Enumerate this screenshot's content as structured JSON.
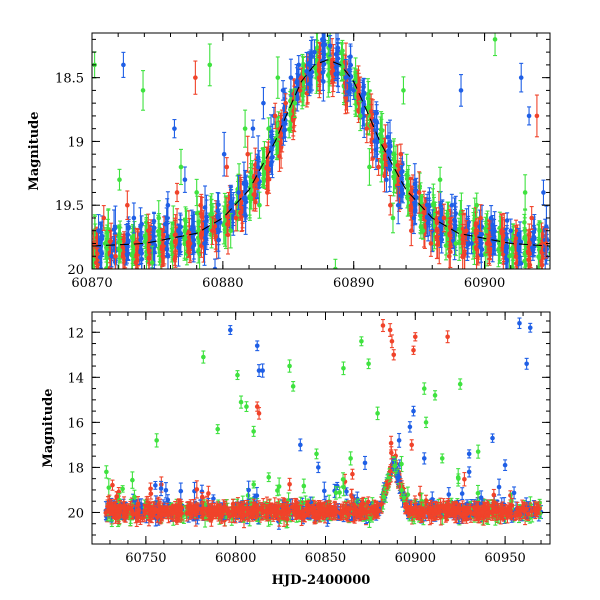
{
  "chart_data": [
    {
      "type": "scatter",
      "panel": "top",
      "ylabel": "Magnitude",
      "xlabel": "",
      "xlim": [
        60870,
        60905
      ],
      "ylim": [
        20.0,
        18.15
      ],
      "y_inverted": true,
      "xticks": [
        60870,
        60880,
        60890,
        60900
      ],
      "yticks": [
        18.5,
        19,
        19.5,
        20
      ],
      "xtick_labels": [
        "60870",
        "60880",
        "60890",
        "60900"
      ],
      "ytick_labels": [
        "18.5",
        "19",
        "19.5",
        "20"
      ],
      "error_bars": true,
      "series": [
        {
          "name": "blue",
          "color": "#1f5fe6"
        },
        {
          "name": "green",
          "color": "#3fe23f"
        },
        {
          "name": "red",
          "color": "#f0432a"
        }
      ],
      "model_curve": {
        "style": "dashed",
        "color": "#000000",
        "x": [
          60870,
          60874,
          60878,
          60880,
          60882,
          60884,
          60885,
          60886,
          60887,
          60888,
          60889,
          60890,
          60891,
          60892,
          60894,
          60896,
          60898,
          60902,
          60905
        ],
        "y": [
          19.82,
          19.8,
          19.72,
          19.6,
          19.38,
          19.0,
          18.76,
          18.53,
          18.4,
          18.36,
          18.4,
          18.53,
          18.76,
          19.0,
          19.38,
          19.6,
          19.72,
          19.8,
          19.82
        ]
      },
      "points": {
        "blue": [
          [
            60870.5,
            19.7
          ],
          [
            60871.5,
            19.9
          ],
          [
            60873.2,
            19.6
          ],
          [
            60875.8,
            19.5
          ],
          [
            60877.1,
            19.3
          ],
          [
            60878.6,
            19.8
          ],
          [
            60880.1,
            19.1
          ],
          [
            60881.2,
            19.4
          ],
          [
            60882.3,
            18.9
          ],
          [
            60883.1,
            18.7
          ],
          [
            60883.9,
            18.8
          ],
          [
            60884.6,
            18.6
          ],
          [
            60885.2,
            18.5
          ],
          [
            60885.8,
            18.4
          ],
          [
            60886.4,
            18.45
          ],
          [
            60887.0,
            18.3
          ],
          [
            60887.6,
            18.2
          ],
          [
            60888.2,
            18.25
          ],
          [
            60888.8,
            18.35
          ],
          [
            60889.4,
            18.5
          ],
          [
            60890.0,
            18.6
          ],
          [
            60890.8,
            18.8
          ],
          [
            60891.6,
            19.0
          ],
          [
            60892.5,
            19.3
          ],
          [
            60893.4,
            19.5
          ],
          [
            60894.6,
            19.6
          ],
          [
            60896.0,
            19.7
          ],
          [
            60897.5,
            19.5
          ],
          [
            60899.0,
            19.8
          ],
          [
            60900.5,
            19.6
          ],
          [
            60902.0,
            19.7
          ],
          [
            60903.4,
            18.8
          ],
          [
            60904.5,
            19.4
          ],
          [
            60876.3,
            18.9
          ],
          [
            60879.4,
            20.0
          ],
          [
            60898.2,
            18.6
          ],
          [
            60872.4,
            18.4
          ],
          [
            60902.8,
            18.5
          ]
        ],
        "green": [
          [
            60870.2,
            18.4
          ],
          [
            60871.0,
            19.8
          ],
          [
            60872.1,
            19.3
          ],
          [
            60873.9,
            18.6
          ],
          [
            60875.1,
            19.6
          ],
          [
            60876.8,
            19.2
          ],
          [
            60878.0,
            19.4
          ],
          [
            60879.0,
            18.4
          ],
          [
            60880.6,
            19.7
          ],
          [
            60881.7,
            18.9
          ],
          [
            60882.8,
            19.5
          ],
          [
            60883.5,
            18.9
          ],
          [
            60884.2,
            18.5
          ],
          [
            60885.5,
            18.7
          ],
          [
            60890.5,
            18.8
          ],
          [
            60891.2,
            19.2
          ],
          [
            60892.1,
            19.0
          ],
          [
            60893.0,
            19.6
          ],
          [
            60893.8,
            18.6
          ],
          [
            60895.3,
            19.7
          ],
          [
            60896.6,
            19.3
          ],
          [
            60897.8,
            19.8
          ],
          [
            60899.4,
            19.5
          ],
          [
            60900.8,
            18.2
          ],
          [
            60901.9,
            19.9
          ],
          [
            60903.1,
            19.4
          ],
          [
            60904.2,
            19.7
          ],
          [
            60874.6,
            19.95
          ],
          [
            60888.6,
            20.0
          ]
        ],
        "red": [
          [
            60870.1,
            19.8
          ],
          [
            60870.9,
            19.6
          ],
          [
            60871.8,
            19.9
          ],
          [
            60872.7,
            19.5
          ],
          [
            60873.5,
            19.8
          ],
          [
            60874.3,
            19.7
          ],
          [
            60875.4,
            19.9
          ],
          [
            60876.5,
            19.4
          ],
          [
            60877.5,
            19.8
          ],
          [
            60878.3,
            19.5
          ],
          [
            60879.2,
            19.7
          ],
          [
            60880.3,
            19.2
          ],
          [
            60881.0,
            19.6
          ],
          [
            60881.9,
            19.1
          ],
          [
            60882.6,
            19.3
          ],
          [
            60883.4,
            19.4
          ],
          [
            60884.0,
            18.8
          ],
          [
            60884.8,
            18.7
          ],
          [
            60885.9,
            18.6
          ],
          [
            60891.0,
            18.9
          ],
          [
            60891.9,
            19.2
          ],
          [
            60892.8,
            19.5
          ],
          [
            60893.6,
            19.1
          ],
          [
            60894.4,
            19.7
          ],
          [
            60895.0,
            19.4
          ],
          [
            60895.9,
            19.8
          ],
          [
            60896.9,
            19.6
          ],
          [
            60897.3,
            19.9
          ],
          [
            60898.6,
            19.7
          ],
          [
            60899.7,
            19.6
          ],
          [
            60900.2,
            19.8
          ],
          [
            60901.3,
            19.7
          ],
          [
            60902.4,
            19.9
          ],
          [
            60903.6,
            19.6
          ],
          [
            60904.7,
            19.8
          ],
          [
            60877.9,
            18.5
          ],
          [
            60886.0,
            18.5
          ],
          [
            60904.0,
            18.8
          ]
        ]
      }
    },
    {
      "type": "scatter",
      "panel": "bottom",
      "ylabel": "Magnitude",
      "xlabel": "HJD-2400000",
      "xlim": [
        60720,
        60975
      ],
      "ylim": [
        21.4,
        11.1
      ],
      "y_inverted": true,
      "xticks": [
        60750,
        60800,
        60850,
        60900,
        60950
      ],
      "yticks": [
        12,
        14,
        16,
        18,
        20
      ],
      "xtick_labels": [
        "60750",
        "60800",
        "60850",
        "60900",
        "60950"
      ],
      "ytick_labels": [
        "12",
        "14",
        "16",
        "18",
        "20"
      ],
      "error_bars": true,
      "series": [
        {
          "name": "blue",
          "color": "#1f5fe6"
        },
        {
          "name": "green",
          "color": "#3fe23f"
        },
        {
          "name": "red",
          "color": "#f0432a"
        }
      ],
      "baseline_magnitude": 19.95,
      "peak": {
        "x": 60888,
        "magnitude": 17.8
      },
      "outliers": {
        "blue": [
          [
            60797,
            11.9
          ],
          [
            60812,
            12.6
          ],
          [
            60813,
            13.7
          ],
          [
            60815,
            13.7
          ],
          [
            60836,
            17.0
          ],
          [
            60846,
            18.0
          ],
          [
            60872,
            17.8
          ],
          [
            60891,
            16.8
          ],
          [
            60897,
            16.2
          ],
          [
            60899,
            15.5
          ],
          [
            60905,
            17.6
          ],
          [
            60930,
            17.4
          ],
          [
            60943,
            16.7
          ],
          [
            60958,
            11.6
          ],
          [
            60962,
            13.4
          ],
          [
            60964,
            11.8
          ],
          [
            60950,
            17.9
          ],
          [
            60930,
            18.2
          ]
        ],
        "green": [
          [
            60728,
            18.2
          ],
          [
            60756,
            16.8
          ],
          [
            60782,
            13.1
          ],
          [
            60790,
            16.3
          ],
          [
            60801,
            13.9
          ],
          [
            60803,
            15.1
          ],
          [
            60806,
            15.3
          ],
          [
            60810,
            16.4
          ],
          [
            60830,
            13.5
          ],
          [
            60832,
            14.4
          ],
          [
            60845,
            17.4
          ],
          [
            60860,
            13.6
          ],
          [
            60864,
            17.6
          ],
          [
            60870,
            12.4
          ],
          [
            60874,
            13.4
          ],
          [
            60879,
            15.6
          ],
          [
            60905,
            14.5
          ],
          [
            60906,
            16.0
          ],
          [
            60911,
            14.8
          ],
          [
            60915,
            17.6
          ],
          [
            60925,
            14.3
          ],
          [
            60935,
            17.3
          ],
          [
            60924,
            18.5
          ]
        ],
        "red": [
          [
            60812,
            15.3
          ],
          [
            60813,
            15.6
          ],
          [
            60882,
            11.7
          ],
          [
            60886,
            11.9
          ],
          [
            60887,
            12.4
          ],
          [
            60888,
            13.0
          ],
          [
            60899,
            12.8
          ],
          [
            60900,
            12.2
          ],
          [
            60918,
            12.2
          ],
          [
            60898,
            17.0
          ],
          [
            60865,
            18.3
          ]
        ]
      }
    }
  ]
}
